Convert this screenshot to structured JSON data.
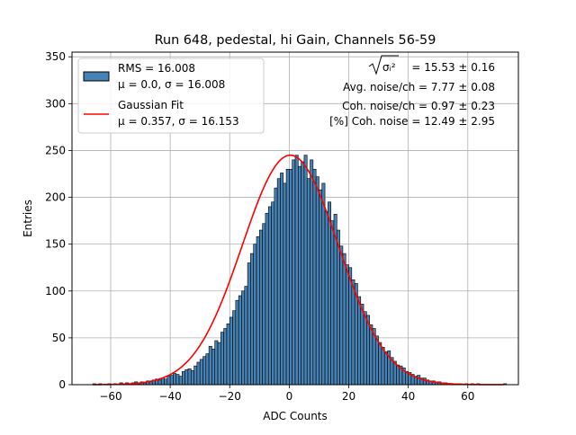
{
  "chart_data": {
    "type": "bar",
    "title": "Run 648, pedestal, hi Gain, Channels 56-59",
    "xlabel": "ADC Counts",
    "ylabel": "Entries",
    "xlim": [
      -73,
      77
    ],
    "ylim": [
      0,
      355
    ],
    "grid": true,
    "xticks": [
      -60,
      -40,
      -20,
      0,
      20,
      40,
      60
    ],
    "yticks": [
      0,
      50,
      100,
      150,
      200,
      250,
      300,
      350
    ],
    "xtick_labels": [
      "−60",
      "−40",
      "−20",
      "0",
      "20",
      "40",
      "60"
    ],
    "ytick_labels": [
      "0",
      "50",
      "100",
      "150",
      "200",
      "250",
      "300",
      "350"
    ],
    "histogram": {
      "name": "RMS = 16.008",
      "sublabel": "μ = 0.0, σ = 16.008",
      "color": "#4682b4",
      "bin_start": -66,
      "bin_width": 1,
      "counts": [
        1,
        0,
        1,
        0,
        0,
        1,
        0,
        1,
        0,
        2,
        1,
        2,
        1,
        2,
        3,
        1,
        3,
        2,
        4,
        3,
        5,
        6,
        5,
        7,
        6,
        9,
        10,
        12,
        11,
        9,
        14,
        16,
        17,
        15,
        20,
        24,
        27,
        30,
        33,
        41,
        38,
        47,
        45,
        56,
        60,
        65,
        72,
        79,
        90,
        95,
        100,
        105,
        130,
        140,
        150,
        158,
        165,
        172,
        183,
        190,
        195,
        210,
        220,
        226,
        215,
        230,
        230,
        240,
        245,
        233,
        238,
        245,
        220,
        240,
        230,
        222,
        208,
        215,
        185,
        195,
        175,
        182,
        165,
        148,
        140,
        128,
        125,
        112,
        108,
        94,
        86,
        78,
        74,
        64,
        60,
        52,
        45,
        40,
        35,
        36,
        29,
        25,
        21,
        20,
        18,
        14,
        13,
        11,
        9,
        10,
        7,
        7,
        5,
        4,
        4,
        3,
        3,
        2,
        2,
        1,
        1,
        1,
        1,
        1,
        0,
        1,
        0,
        1,
        0,
        1,
        0,
        0,
        0,
        0,
        0,
        0,
        0,
        0,
        1
      ]
    },
    "fit": {
      "name": "Gaussian Fit",
      "sublabel": "μ = 0.357, σ = 16.153",
      "mu": 0.357,
      "sigma": 16.153,
      "amplitude": 245,
      "range": [
        -66,
        72
      ],
      "color": "#ff0000"
    },
    "legend_position": "upper-left",
    "annotations": {
      "sqrt_label": "σᵢ²",
      "sqrt_value": " = 15.53 ± 0.16",
      "avg_noise": "Avg. noise/ch = 7.77 ± 0.08",
      "coh_noise": "Coh. noise/ch = 0.97 ± 0.23",
      "pct_coh_noise": "[%] Coh. noise = 12.49 ± 2.95"
    }
  }
}
